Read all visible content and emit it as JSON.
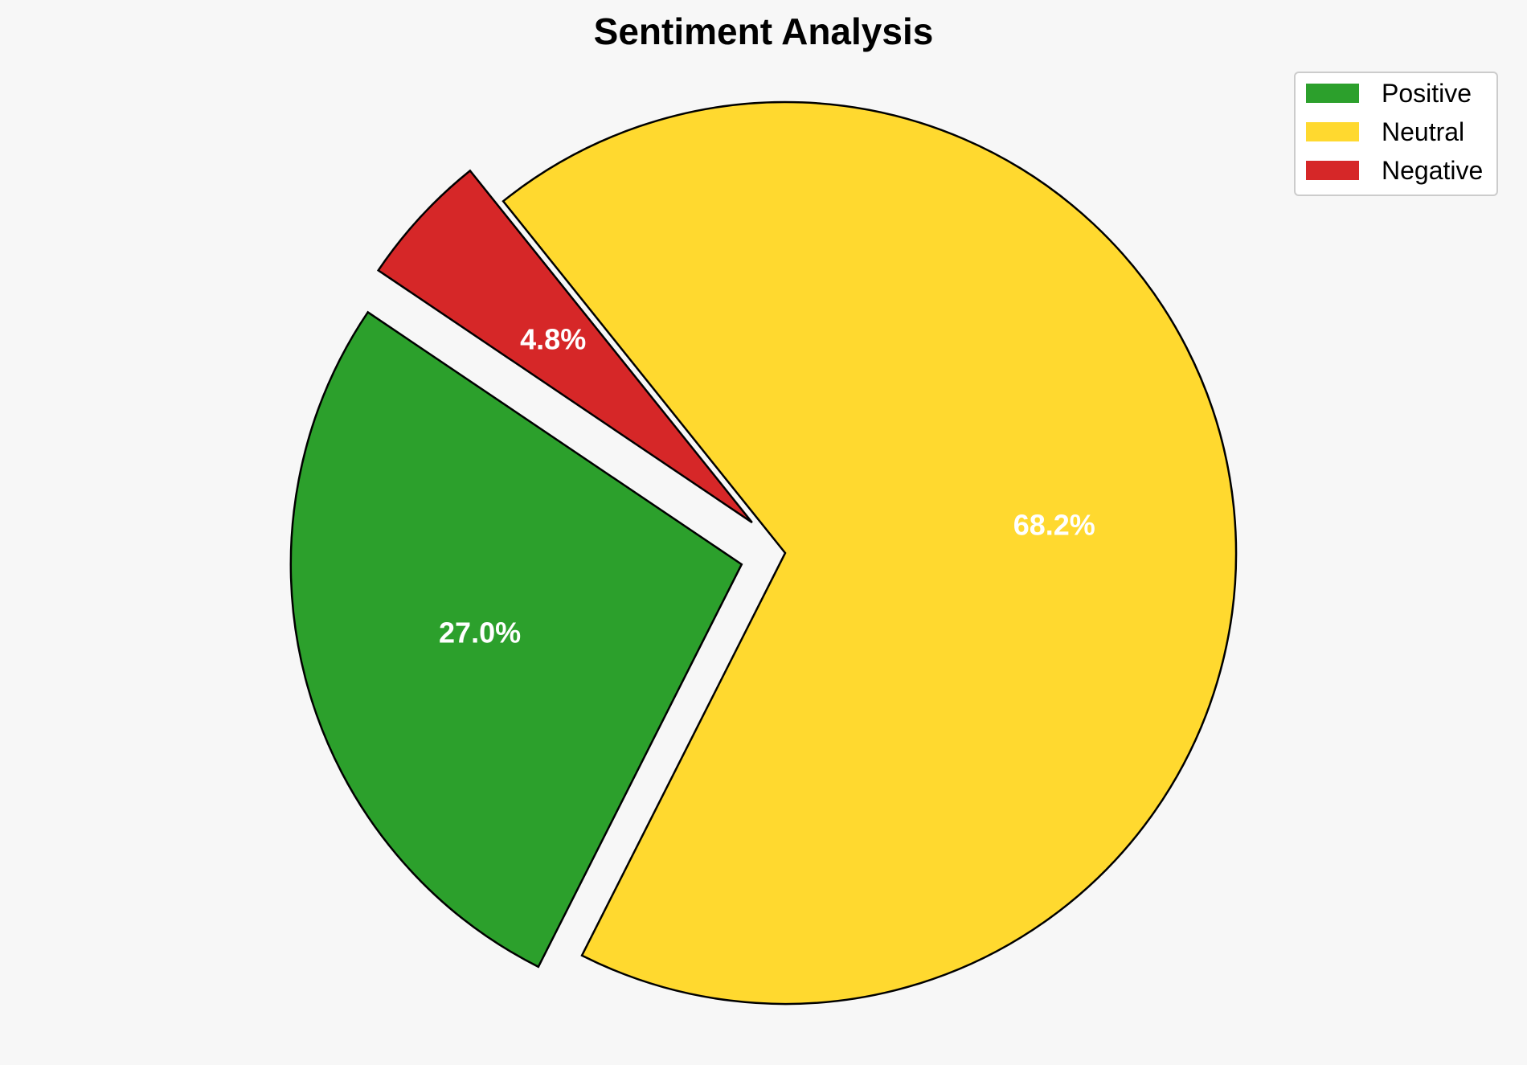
{
  "chart_data": {
    "type": "pie",
    "title": "Sentiment Analysis",
    "slices": [
      {
        "label": "Positive",
        "value": 27.0,
        "display": "27.0%",
        "color": "#2ca02c",
        "exploded": true
      },
      {
        "label": "Neutral",
        "value": 68.2,
        "display": "68.2%",
        "color": "#ffd92f",
        "exploded": false
      },
      {
        "label": "Negative",
        "value": 4.8,
        "display": "4.8%",
        "color": "#d62728",
        "exploded": true
      }
    ],
    "legend": {
      "placement": "top-right",
      "entries": [
        "Positive",
        "Neutral",
        "Negative"
      ]
    },
    "slice_label_color": "#ffffff",
    "edge_color": "#000000"
  }
}
